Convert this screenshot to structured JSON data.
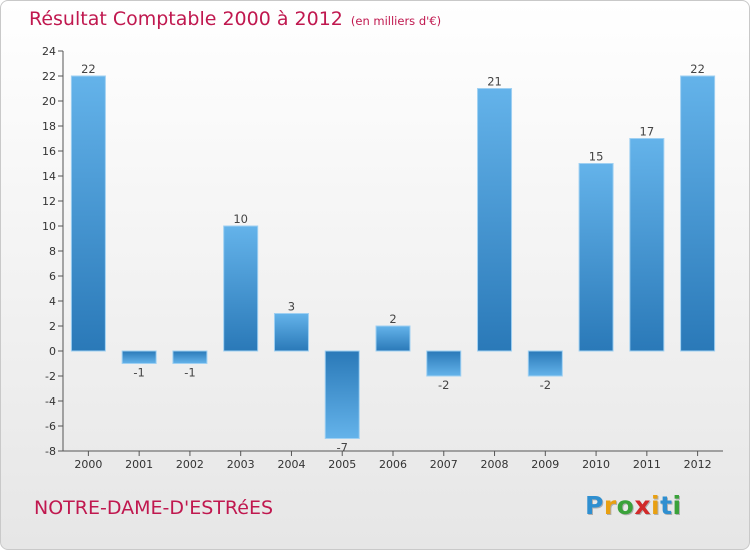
{
  "header": {
    "title": "Résultat Comptable 2000 à 2012",
    "subtitle": "(en milliers d'€)"
  },
  "footer": {
    "commune": "NOTRE-DAME-D'ESTRéES",
    "logo_letters": [
      {
        "ch": "P",
        "color": "#2f8fd0"
      },
      {
        "ch": "r",
        "color": "#e8a012"
      },
      {
        "ch": "o",
        "color": "#3aa23a"
      },
      {
        "ch": "x",
        "color": "#d12a2a"
      },
      {
        "ch": "i",
        "color": "#e8a012"
      },
      {
        "ch": "t",
        "color": "#2f8fd0"
      },
      {
        "ch": "i",
        "color": "#3aa23a"
      }
    ]
  },
  "chart_data": {
    "type": "bar",
    "categories": [
      "2000",
      "2001",
      "2002",
      "2003",
      "2004",
      "2005",
      "2006",
      "2007",
      "2008",
      "2009",
      "2010",
      "2011",
      "2012"
    ],
    "values": [
      22,
      -1,
      -1,
      10,
      3,
      -7,
      2,
      -2,
      21,
      -2,
      15,
      17,
      22
    ],
    "title": "Résultat Comptable 2000 à 2012",
    "xlabel": "",
    "ylabel": "",
    "ylim": [
      -8,
      24
    ],
    "yticks": [
      -8,
      -6,
      -4,
      -2,
      0,
      2,
      4,
      6,
      8,
      10,
      12,
      14,
      16,
      18,
      20,
      22,
      24
    ],
    "grid": false,
    "colors": {
      "bar_light": "#64b3ea",
      "bar_dark": "#2a79b8",
      "axis": "#555555"
    }
  }
}
